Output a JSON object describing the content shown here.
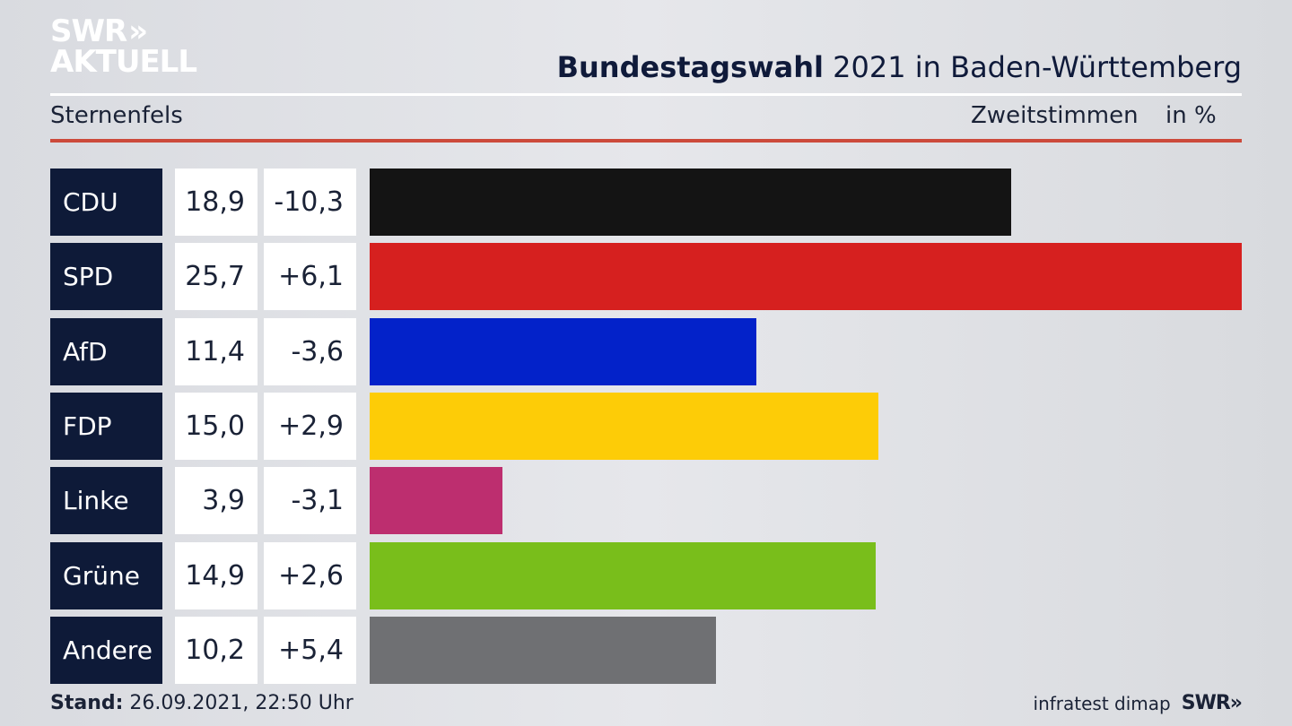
{
  "brand": {
    "line1": "SWR",
    "line2": "AKTUELL",
    "chevrons": "»"
  },
  "header": {
    "title_bold": "Bundestagswahl",
    "title_rest": " 2021 in Baden-Württemberg",
    "region": "Sternenfels",
    "metric": "Zweitstimmen",
    "unit": "in %"
  },
  "chart_data": {
    "type": "bar",
    "orientation": "horizontal",
    "categories": [
      "CDU",
      "SPD",
      "AfD",
      "FDP",
      "Linke",
      "Grüne",
      "Andere"
    ],
    "values": [
      18.9,
      25.7,
      11.4,
      15.0,
      3.9,
      14.9,
      10.2
    ],
    "value_labels": [
      "18,9",
      "25,7",
      "11,4",
      "15,0",
      "3,9",
      "14,9",
      "10,2"
    ],
    "change_labels": [
      "-10,3",
      "+6,1",
      "-3,6",
      "+2,9",
      "-3,1",
      "+2,6",
      "+5,4"
    ],
    "changes": [
      -10.3,
      6.1,
      -3.6,
      2.9,
      -3.1,
      2.6,
      5.4
    ],
    "colors": [
      "#141414",
      "#d6201f",
      "#0322c9",
      "#fdcc07",
      "#bd2e6f",
      "#79be1b",
      "#6f7073"
    ],
    "xlim": [
      0,
      25.7
    ],
    "grid": false,
    "legend": "none"
  },
  "footer": {
    "stand_label": "Stand:",
    "stand_value": " 26.09.2021, 22:50 Uhr",
    "source": "infratest dimap",
    "brand": "SWR",
    "brand_chevrons": "»"
  }
}
